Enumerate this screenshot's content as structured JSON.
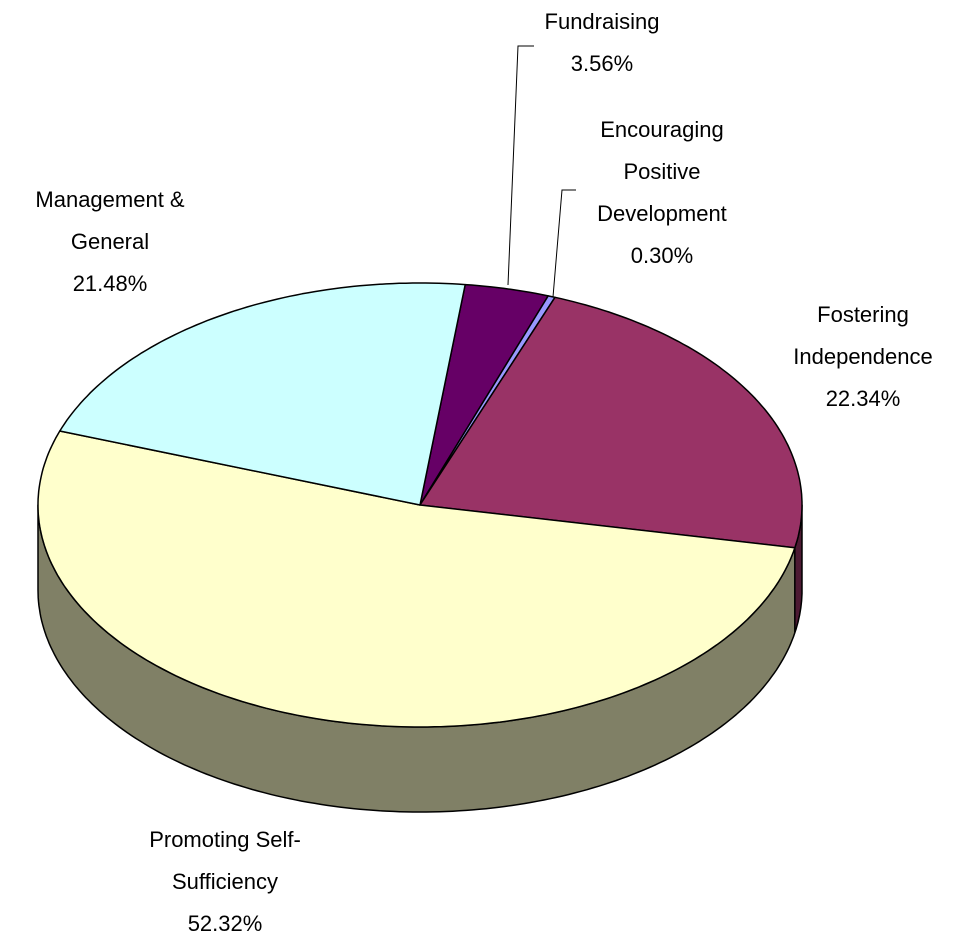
{
  "chart_data": {
    "type": "pie3d",
    "categories": [
      "Fundraising",
      "Encouraging Positive Development",
      "Fostering Independence",
      "Promoting Self-Sufficiency",
      "Management & General"
    ],
    "values": [
      3.56,
      0.3,
      22.34,
      52.32,
      21.48
    ],
    "value_labels": [
      "3.56%",
      "0.30%",
      "22.34%",
      "52.32%",
      "21.48%"
    ],
    "colors": [
      "#660066",
      "#9999ff",
      "#993366",
      "#ffffcc",
      "#ccffff"
    ]
  }
}
